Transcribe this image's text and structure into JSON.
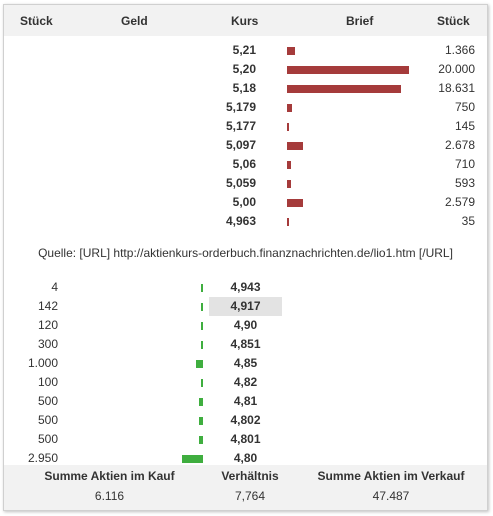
{
  "header": {
    "qty_left": "Stück",
    "bid": "Geld",
    "price": "Kurs",
    "ask": "Brief",
    "qty_right": "Stück"
  },
  "colors": {
    "ask_bar": "#a53b3b",
    "bid_bar": "#3fae3f",
    "highlight": "#e3e3e3"
  },
  "asks": [
    {
      "price": "5,21",
      "qty": "1.366",
      "qty_value": 1366
    },
    {
      "price": "5,20",
      "qty": "20.000",
      "qty_value": 20000
    },
    {
      "price": "5,18",
      "qty": "18.631",
      "qty_value": 18631
    },
    {
      "price": "5,179",
      "qty": "750",
      "qty_value": 750
    },
    {
      "price": "5,177",
      "qty": "145",
      "qty_value": 145
    },
    {
      "price": "5,097",
      "qty": "2.678",
      "qty_value": 2678
    },
    {
      "price": "5,06",
      "qty": "710",
      "qty_value": 710
    },
    {
      "price": "5,059",
      "qty": "593",
      "qty_value": 593
    },
    {
      "price": "5,00",
      "qty": "2.579",
      "qty_value": 2579
    },
    {
      "price": "4,963",
      "qty": "35",
      "qty_value": 35
    }
  ],
  "source": "Quelle: [URL] http://aktienkurs-orderbuch.finanznachrichten.de/lio1.htm [/URL]",
  "bids": [
    {
      "qty": "4",
      "qty_value": 4,
      "price": "4,943",
      "highlighted": false
    },
    {
      "qty": "142",
      "qty_value": 142,
      "price": "4,917",
      "highlighted": true
    },
    {
      "qty": "120",
      "qty_value": 120,
      "price": "4,90",
      "highlighted": false
    },
    {
      "qty": "300",
      "qty_value": 300,
      "price": "4,851",
      "highlighted": false
    },
    {
      "qty": "1.000",
      "qty_value": 1000,
      "price": "4,85",
      "highlighted": false
    },
    {
      "qty": "100",
      "qty_value": 100,
      "price": "4,82",
      "highlighted": false
    },
    {
      "qty": "500",
      "qty_value": 500,
      "price": "4,81",
      "highlighted": false
    },
    {
      "qty": "500",
      "qty_value": 500,
      "price": "4,802",
      "highlighted": false
    },
    {
      "qty": "500",
      "qty_value": 500,
      "price": "4,801",
      "highlighted": false
    },
    {
      "qty": "2.950",
      "qty_value": 2950,
      "price": "4,80",
      "highlighted": false
    }
  ],
  "footer": {
    "buy_label": "Summe Aktien im Kauf",
    "buy_value": "6.116",
    "ratio_label": "Verhältnis",
    "ratio_value": "7,764",
    "sell_label": "Summe Aktien im Verkauf",
    "sell_value": "47.487"
  }
}
